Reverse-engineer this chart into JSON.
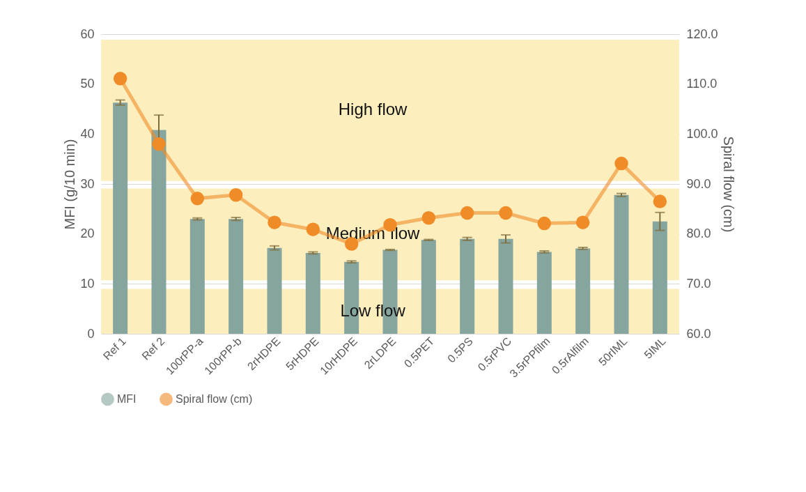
{
  "chart_data": {
    "type": "bar",
    "categories": [
      "Ref 1",
      "Ref 2",
      "100rPP-a",
      "100rPP-b",
      "2rHDPE",
      "5rHDPE",
      "10rHDPE",
      "2rLDPE",
      "0.5PET",
      "0.5PS",
      "0.5rPVC",
      "3.5rPPfilm",
      "0.5rAlfilm",
      "50rIML",
      "5IML"
    ],
    "series": [
      {
        "name": "MFI",
        "color": "#86a59e",
        "values": [
          46.3,
          40.8,
          23.0,
          23.0,
          17.2,
          16.2,
          14.4,
          16.8,
          18.8,
          19.0,
          19.0,
          16.4,
          17.1,
          27.8,
          22.5
        ],
        "errors": [
          0.5,
          3.0,
          0.2,
          0.3,
          0.4,
          0.2,
          0.2,
          0.1,
          0.1,
          0.3,
          0.8,
          0.2,
          0.2,
          0.3,
          1.8
        ]
      },
      {
        "name": "Spiral flow (cm)",
        "type": "line",
        "axis": "y2",
        "color": "#f08c28",
        "marker": "circle",
        "values": [
          111.1,
          98.0,
          87.1,
          87.8,
          82.3,
          80.9,
          78.0,
          81.8,
          83.2,
          84.2,
          84.2,
          82.1,
          82.3,
          94.1,
          86.5
        ]
      }
    ],
    "ylabel": "MFI (g/10 min)",
    "y2label": "Spiral flow (cm)",
    "ylim": [
      0,
      60
    ],
    "yticks": [
      0,
      10,
      20,
      30,
      40,
      50,
      60
    ],
    "y2lim": [
      60,
      120
    ],
    "y2ticks": [
      {
        "value": 60,
        "label": "60.0"
      },
      {
        "value": 70,
        "label": "70.0"
      },
      {
        "value": 80,
        "label": "80.0"
      },
      {
        "value": 90,
        "label": "90.0"
      },
      {
        "value": 100,
        "label": "100.0"
      },
      {
        "value": 110,
        "label": "110.0"
      },
      {
        "value": 120,
        "label": "120.0"
      }
    ],
    "bands": [
      {
        "axis": "y",
        "from": 30.6,
        "to": 58.9,
        "label": "High flow",
        "color": "#fdeebd"
      },
      {
        "axis": "y",
        "from": 10.7,
        "to": 29.1,
        "label": "Medium flow",
        "color": "#fdeebd"
      },
      {
        "axis": "y",
        "from": 0,
        "to": 9.0,
        "label": "Low flow",
        "color": "#fdeebd"
      }
    ],
    "grid": "y",
    "legend": "bottom"
  }
}
